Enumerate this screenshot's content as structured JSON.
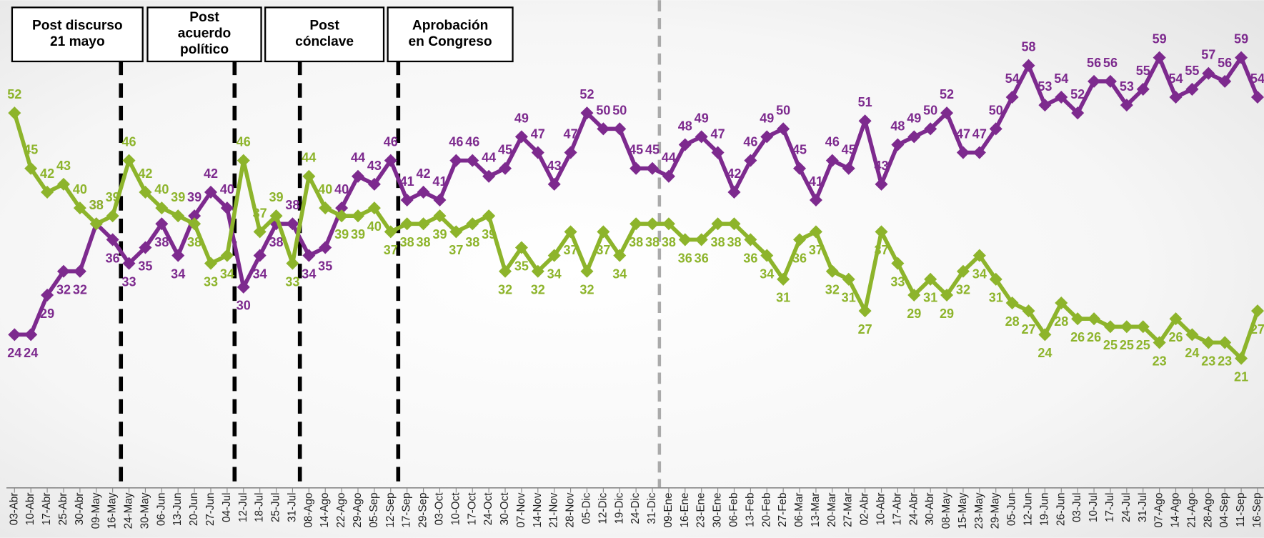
{
  "chart_data": {
    "type": "line",
    "categories": [
      "03-Abr",
      "10-Abr",
      "17-Abr",
      "25-Abr",
      "30-Abr",
      "09-May",
      "16-May",
      "24-May",
      "30-May",
      "06-Jun",
      "13-Jun",
      "20-Jun",
      "27-Jun",
      "04-Jul",
      "12-Jul",
      "18-Jul",
      "25-Jul",
      "31-Jul",
      "08-Ago",
      "14-Ago",
      "22-Ago",
      "29-Ago",
      "05-Sep",
      "12-Sep",
      "17-Sep",
      "29-Sep",
      "03-Oct",
      "10-Oct",
      "17-Oct",
      "24-Oct",
      "30-Oct",
      "07-Nov",
      "14-Nov",
      "21-Nov",
      "28-Nov",
      "05-Dic",
      "12-Dic",
      "19-Dic",
      "24-Dic",
      "31-Dic",
      "09-Ene",
      "16-Ene",
      "23-Ene",
      "30-Ene",
      "06-Feb",
      "13-Feb",
      "20-Feb",
      "27-Feb",
      "06-Mar",
      "13-Mar",
      "20-Mar",
      "27-Mar",
      "02-Abr",
      "10-Abr",
      "17-Abr",
      "24-Abr",
      "30-Abr",
      "08-May",
      "15-May",
      "23-May",
      "29-May",
      "05-Jun",
      "12-Jun",
      "19-Jun",
      "26-Jun",
      "03-Jul",
      "10-Jul",
      "17-Jul",
      "24-Jul",
      "31-Jul",
      "07-Ago",
      "14-Ago",
      "21-Ago",
      "28-Ago",
      "04-Sep",
      "11-Sep",
      "16-Sep"
    ],
    "series": [
      {
        "color": "#7d2a8e",
        "values": [
          24,
          24,
          29,
          32,
          32,
          38,
          36,
          33,
          35,
          38,
          34,
          39,
          42,
          40,
          30,
          34,
          38,
          38,
          34,
          35,
          40,
          44,
          43,
          46,
          41,
          42,
          41,
          46,
          46,
          44,
          45,
          49,
          47,
          43,
          47,
          52,
          50,
          50,
          45,
          45,
          44,
          48,
          49,
          47,
          42,
          46,
          49,
          50,
          45,
          41,
          46,
          45,
          51,
          43,
          48,
          49,
          50,
          52,
          47,
          47,
          50,
          54,
          58,
          53,
          54,
          52,
          56,
          56,
          53,
          55,
          59,
          54,
          55,
          57,
          56,
          59,
          54
        ]
      },
      {
        "color": "#8db42b",
        "values": [
          52,
          45,
          42,
          43,
          40,
          38,
          39,
          46,
          42,
          40,
          39,
          38,
          33,
          34,
          46,
          37,
          39,
          33,
          44,
          40,
          39,
          39,
          40,
          37,
          38,
          38,
          39,
          37,
          38,
          39,
          32,
          35,
          32,
          34,
          37,
          32,
          37,
          34,
          38,
          38,
          38,
          36,
          36,
          38,
          38,
          36,
          34,
          31,
          36,
          37,
          32,
          31,
          27,
          37,
          33,
          29,
          31,
          29,
          32,
          34,
          31,
          28,
          27,
          24,
          28,
          26,
          26,
          25,
          25,
          25,
          23,
          26,
          24,
          23,
          23,
          21,
          27
        ]
      }
    ],
    "ylim": [
      5,
      66
    ],
    "annotations": [
      {
        "lines": [
          "Post discurso",
          "21 mayo"
        ]
      },
      {
        "lines": [
          "Post",
          "acuerdo",
          "político"
        ]
      },
      {
        "lines": [
          "Post",
          "cónclave"
        ]
      },
      {
        "lines": [
          "Aprobación",
          "en Congreso"
        ]
      }
    ]
  }
}
